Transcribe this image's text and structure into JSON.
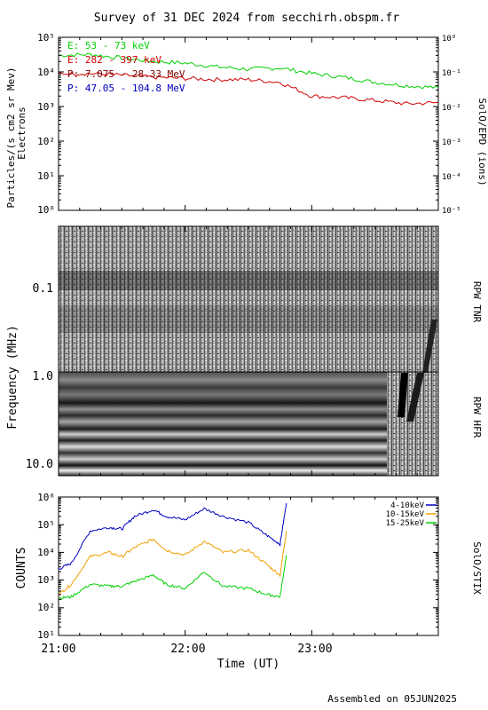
{
  "title": "Survey of 31 DEC 2024 from secchirh.obspm.fr",
  "footer": "Assembled on 05JUN2025",
  "colors": {
    "green": "#00d000",
    "red": "#d00000",
    "darkred": "#800000",
    "blue": "#0000c0",
    "stix_blue": "#0000c0",
    "stix_orange": "#f0a000",
    "stix_green": "#00d000"
  },
  "chart_data": [
    {
      "type": "line",
      "panel": "epd",
      "ylabel_left": "Particles/(s cm2 sr Mev)",
      "ylabel_left2": "Electrons",
      "ylabel_right": "SolO/EPD (ions)",
      "scale": "log",
      "ylim_left": [
        1,
        100000
      ],
      "ylim_right": [
        1e-05,
        1
      ],
      "ticks_left": [
        "10⁵",
        "10⁴",
        "10³",
        "10²",
        "10¹",
        "10⁰"
      ],
      "ticks_right": [
        "10⁰",
        "10⁻¹",
        "10⁻²",
        "10⁻³",
        "10⁻⁴",
        "10⁻⁵"
      ],
      "x_hours": [
        21.0,
        24.0
      ],
      "legend": [
        {
          "label": "E: 53 - 73 keV",
          "color": "#00d000"
        },
        {
          "label": "E: 282 - 397 keV",
          "color": "#d00000"
        },
        {
          "label": "P: 7.075 - 28.33 MeV",
          "color": "#800000"
        },
        {
          "label": "P: 47.05 - 104.8 MeV",
          "color": "#0000c0"
        }
      ],
      "series": [
        {
          "name": "E: 53 - 73 keV",
          "color": "#00d000",
          "x": [
            21.0,
            21.25,
            21.5,
            21.75,
            22.0,
            22.25,
            22.5,
            22.75,
            23.0,
            23.25,
            23.5,
            23.75,
            24.0
          ],
          "y": [
            30000,
            32000,
            25000,
            20000,
            18000,
            14000,
            12000,
            13000,
            9000,
            7000,
            5000,
            4000,
            3500
          ]
        },
        {
          "name": "E: 282 - 397 keV",
          "color": "#d00000",
          "x": [
            21.0,
            21.25,
            21.5,
            21.75,
            22.0,
            22.25,
            22.5,
            22.75,
            23.0,
            23.25,
            23.5,
            23.75,
            24.0
          ],
          "y": [
            9000,
            9000,
            8000,
            7000,
            6500,
            6000,
            6000,
            5000,
            2000,
            1800,
            1500,
            1200,
            1300
          ]
        }
      ]
    },
    {
      "type": "heatmap",
      "panel": "rpw",
      "ylabel": "Frequency (MHz)",
      "label_tnr": "RPW TNR",
      "label_hfr": "RPW HFR",
      "scale": "log",
      "ylim": [
        0.02,
        16
      ],
      "ticks": [
        "0.1",
        "1.0",
        "10.0"
      ]
    },
    {
      "type": "line",
      "panel": "stix",
      "ylabel": "COUNTS",
      "ylabel_right": "SolO/STIX",
      "xlabel": "Time (UT)",
      "scale": "log",
      "ylim": [
        10,
        1000000
      ],
      "ticks": [
        "10⁶",
        "10⁵",
        "10⁴",
        "10³",
        "10²",
        "10¹"
      ],
      "x_ticks": [
        "21:00",
        "22:00",
        "23:00"
      ],
      "x_tick_hours": [
        21.0,
        22.0,
        23.0
      ],
      "legend": [
        {
          "label": "4-10keV",
          "color": "#0000c0"
        },
        {
          "label": "10-15keV",
          "color": "#f0a000"
        },
        {
          "label": "15-25keV",
          "color": "#00d000"
        }
      ],
      "series": [
        {
          "name": "4-10keV",
          "color": "#0000c0",
          "x": [
            21.0,
            21.1,
            21.25,
            21.4,
            21.5,
            21.6,
            21.75,
            21.85,
            22.0,
            22.15,
            22.3,
            22.5,
            22.65,
            22.75,
            22.8
          ],
          "y": [
            2500,
            4000,
            60000,
            80000,
            70000,
            200000,
            350000,
            200000,
            150000,
            380000,
            200000,
            120000,
            40000,
            20000,
            600000
          ]
        },
        {
          "name": "10-15keV",
          "color": "#f0a000",
          "x": [
            21.0,
            21.1,
            21.25,
            21.4,
            21.5,
            21.6,
            21.75,
            21.85,
            22.0,
            22.15,
            22.3,
            22.5,
            22.65,
            22.75,
            22.8
          ],
          "y": [
            300,
            700,
            7000,
            10000,
            7000,
            15000,
            30000,
            12000,
            8000,
            25000,
            10000,
            12000,
            3500,
            1500,
            60000
          ]
        },
        {
          "name": "15-25keV",
          "color": "#00d000",
          "x": [
            21.0,
            21.1,
            21.25,
            21.4,
            21.5,
            21.6,
            21.75,
            21.85,
            22.0,
            22.15,
            22.3,
            22.5,
            22.65,
            22.75,
            22.8
          ],
          "y": [
            220,
            250,
            700,
            600,
            600,
            900,
            1500,
            700,
            500,
            2000,
            600,
            500,
            300,
            250,
            8000
          ]
        }
      ]
    }
  ]
}
